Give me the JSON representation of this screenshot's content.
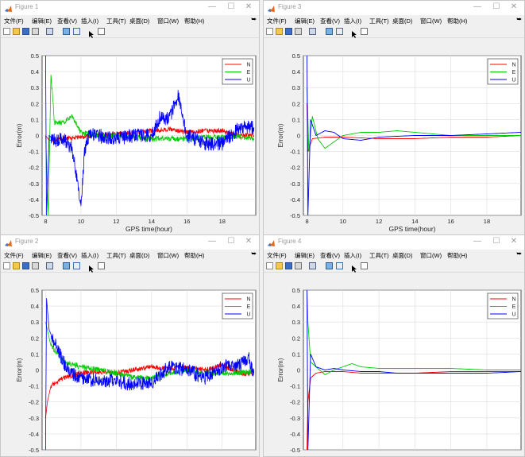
{
  "menu": [
    "文件(F)",
    "编辑(E)",
    "查看(V)",
    "插入(I)",
    "工具(T)",
    "桌面(D)",
    "窗口(W)",
    "帮助(H)"
  ],
  "windows": [
    {
      "title": "Figure 1",
      "chart_data": {
        "type": "line",
        "xlabel": "GPS time(hour)",
        "ylabel": "Error(m)",
        "xlim": [
          7.8,
          19.9
        ],
        "ylim": [
          -0.5,
          0.5
        ],
        "xticks": [
          "8",
          "10",
          "12",
          "14",
          "16",
          "18"
        ],
        "yticks": [
          "-0.5",
          "-0.4",
          "-0.3",
          "-0.2",
          "-0.1",
          "0",
          "0.1",
          "0.2",
          "0.3",
          "0.4",
          "0.5"
        ],
        "grid": true,
        "legend": "top-right",
        "series": [
          {
            "name": "N",
            "color": "#ff0000",
            "x": [
              8.0,
              8.2,
              9.0,
              10.0,
              11.0,
              12.0,
              13.0,
              14.0,
              15.0,
              16.0,
              17.0,
              18.0,
              19.0,
              19.8
            ],
            "y": [
              0.0,
              -0.03,
              -0.02,
              -0.01,
              0.0,
              0.01,
              0.02,
              0.03,
              0.04,
              0.02,
              0.03,
              0.03,
              0.0,
              0.0
            ]
          },
          {
            "name": "E",
            "color": "#00cc00",
            "x": [
              8.0,
              8.15,
              8.3,
              8.5,
              9.0,
              9.5,
              10.0,
              11.0,
              12.0,
              13.0,
              14.0,
              15.0,
              16.0,
              17.0,
              18.0,
              19.0,
              19.8
            ],
            "y": [
              0.0,
              -0.5,
              0.38,
              0.08,
              0.08,
              0.12,
              0.02,
              0.0,
              0.0,
              -0.01,
              -0.02,
              -0.02,
              -0.02,
              -0.01,
              -0.01,
              -0.01,
              -0.02
            ]
          },
          {
            "name": "U",
            "color": "#0000ff",
            "x": [
              8.0,
              8.05,
              8.2,
              8.5,
              9.0,
              9.5,
              9.8,
              10.0,
              10.2,
              10.5,
              11.0,
              12.0,
              13.0,
              14.0,
              14.5,
              15.0,
              15.5,
              15.8,
              16.0,
              17.0,
              18.0,
              19.0,
              19.8
            ],
            "y": [
              0.5,
              -0.5,
              0.0,
              -0.03,
              -0.02,
              -0.08,
              -0.3,
              -0.45,
              -0.1,
              0.02,
              0.0,
              -0.02,
              0.0,
              0.0,
              0.12,
              0.1,
              0.25,
              0.1,
              0.0,
              -0.05,
              -0.05,
              0.05,
              0.05
            ]
          }
        ]
      }
    },
    {
      "title": "Figure 3",
      "chart_data": {
        "type": "line",
        "xlabel": "GPS time(hour)",
        "ylabel": "Error(m)",
        "xlim": [
          7.8,
          19.9
        ],
        "ylim": [
          -0.5,
          0.5
        ],
        "xticks": [
          "8",
          "10",
          "12",
          "14",
          "16",
          "18"
        ],
        "yticks": [
          "-0.5",
          "-0.4",
          "-0.3",
          "-0.2",
          "-0.1",
          "0",
          "0.1",
          "0.2",
          "0.3",
          "0.4",
          "0.5"
        ],
        "grid": true,
        "legend": "top-right",
        "series": [
          {
            "name": "N",
            "color": "#ff0000",
            "x": [
              8.0,
              8.05,
              8.3,
              9.0,
              10.0,
              12.0,
              14.0,
              16.0,
              18.0,
              19.9
            ],
            "y": [
              0.2,
              -0.1,
              -0.02,
              -0.01,
              -0.01,
              -0.02,
              -0.02,
              -0.01,
              -0.01,
              0.0
            ]
          },
          {
            "name": "E",
            "color": "#00cc00",
            "x": [
              8.0,
              8.1,
              8.3,
              8.6,
              9.0,
              9.5,
              10.0,
              11.0,
              12.0,
              13.0,
              14.0,
              15.0,
              16.0,
              18.0,
              19.9
            ],
            "y": [
              0.3,
              -0.1,
              0.12,
              -0.02,
              -0.08,
              -0.04,
              0.0,
              0.02,
              0.02,
              0.03,
              0.02,
              0.01,
              0.0,
              0.0,
              0.0
            ]
          },
          {
            "name": "U",
            "color": "#0000ff",
            "x": [
              8.0,
              8.05,
              8.2,
              8.5,
              9.0,
              9.5,
              10.0,
              11.0,
              12.0,
              14.0,
              16.0,
              18.0,
              19.9
            ],
            "y": [
              0.5,
              -0.5,
              0.1,
              0.0,
              0.03,
              0.02,
              -0.02,
              -0.03,
              -0.01,
              0.0,
              0.0,
              0.01,
              0.02
            ]
          }
        ]
      }
    },
    {
      "title": "Figure 2",
      "chart_data": {
        "type": "line",
        "xlabel": "",
        "ylabel": "Error(m)",
        "xlim": [
          7.8,
          19.9
        ],
        "ylim": [
          -0.5,
          0.5
        ],
        "xticks": [],
        "yticks": [
          "-0.5",
          "-0.4",
          "-0.3",
          "-0.2",
          "-0.1",
          "0",
          "0.1",
          "0.2",
          "0.3",
          "0.4",
          "0.5"
        ],
        "grid": true,
        "legend": "top-right",
        "series": [
          {
            "name": "N",
            "color": "#ff0000",
            "x": [
              8.0,
              8.1,
              8.3,
              9.0,
              10.0,
              11.0,
              12.0,
              13.0,
              14.0,
              15.0,
              16.0,
              17.0,
              18.0,
              19.0,
              19.8
            ],
            "y": [
              -0.3,
              -0.2,
              -0.1,
              -0.05,
              -0.02,
              -0.01,
              -0.02,
              0.0,
              0.02,
              0.01,
              0.02,
              0.0,
              0.03,
              -0.02,
              -0.03
            ]
          },
          {
            "name": "E",
            "color": "#00cc00",
            "x": [
              8.0,
              8.1,
              8.3,
              8.7,
              9.0,
              10.0,
              11.0,
              12.0,
              13.0,
              14.0,
              15.0,
              16.0,
              17.0,
              18.0,
              19.0,
              19.8
            ],
            "y": [
              0.3,
              0.25,
              0.15,
              0.1,
              0.05,
              0.02,
              0.0,
              -0.02,
              -0.05,
              -0.05,
              -0.02,
              0.0,
              -0.02,
              -0.02,
              -0.02,
              -0.01
            ]
          },
          {
            "name": "U",
            "color": "#0000ff",
            "x": [
              8.0,
              8.05,
              8.2,
              8.6,
              9.0,
              9.5,
              10.0,
              11.0,
              12.0,
              13.0,
              14.0,
              15.0,
              16.0,
              17.0,
              18.0,
              19.0,
              19.5,
              19.8
            ],
            "y": [
              -0.5,
              0.45,
              0.25,
              0.15,
              0.05,
              -0.02,
              -0.05,
              -0.07,
              -0.07,
              -0.09,
              -0.08,
              0.02,
              0.0,
              -0.05,
              0.02,
              0.03,
              0.08,
              -0.02
            ]
          }
        ]
      }
    },
    {
      "title": "Figure 4",
      "chart_data": {
        "type": "line",
        "xlabel": "",
        "ylabel": "Error(m)",
        "xlim": [
          7.8,
          19.9
        ],
        "ylim": [
          -0.5,
          0.5
        ],
        "xticks": [],
        "yticks": [
          "-0.5",
          "-0.4",
          "-0.3",
          "-0.2",
          "-0.1",
          "0",
          "0.1",
          "0.2",
          "0.3",
          "0.4",
          "0.5"
        ],
        "grid": true,
        "legend": "top-right",
        "series": [
          {
            "name": "N",
            "color": "#ff0000",
            "x": [
              8.0,
              8.05,
              8.2,
              8.5,
              9.0,
              10.0,
              11.0,
              12.0,
              14.0,
              16.0,
              18.0,
              19.9
            ],
            "y": [
              -0.5,
              -0.2,
              -0.05,
              -0.02,
              -0.01,
              -0.01,
              -0.02,
              -0.02,
              -0.02,
              -0.01,
              -0.01,
              -0.01
            ]
          },
          {
            "name": "E",
            "color": "#00cc00",
            "x": [
              8.0,
              8.05,
              8.2,
              8.5,
              9.0,
              9.5,
              10.0,
              10.5,
              11.0,
              12.0,
              14.0,
              16.0,
              18.0,
              19.9
            ],
            "y": [
              0.5,
              0.3,
              0.05,
              0.02,
              -0.03,
              0.0,
              0.02,
              0.04,
              0.02,
              0.01,
              0.01,
              0.01,
              0.0,
              0.0
            ]
          },
          {
            "name": "U",
            "color": "#0000ff",
            "x": [
              8.0,
              8.05,
              8.2,
              8.5,
              9.0,
              9.5,
              10.0,
              11.0,
              12.0,
              13.0,
              14.0,
              16.0,
              18.0,
              19.9
            ],
            "y": [
              0.5,
              -0.5,
              0.1,
              0.02,
              0.0,
              0.01,
              0.0,
              -0.01,
              -0.01,
              -0.02,
              -0.02,
              -0.02,
              -0.02,
              -0.01
            ]
          }
        ]
      }
    }
  ]
}
